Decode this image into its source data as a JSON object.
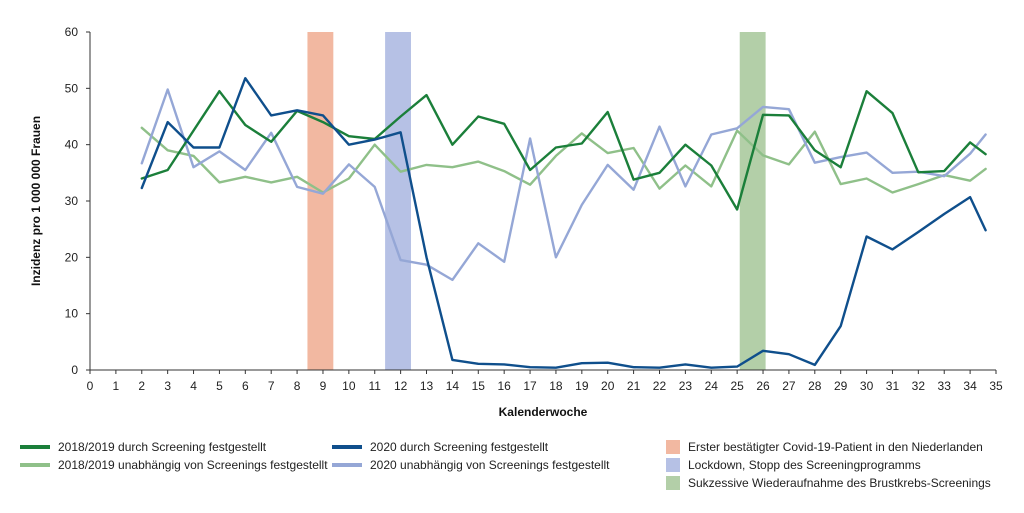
{
  "chart_data": {
    "type": "line",
    "xlabel": "Kalenderwoche",
    "ylabel": "Inzidenz pro 1 000 000 Frauen",
    "xlim": [
      0,
      35
    ],
    "ylim": [
      0,
      60
    ],
    "x_ticks": [
      "0",
      "1",
      "2",
      "3",
      "4",
      "5",
      "6",
      "7",
      "8",
      "9",
      "10",
      "11",
      "12",
      "13",
      "14",
      "15",
      "16",
      "17",
      "18",
      "19",
      "20",
      "21",
      "22",
      "23",
      "24",
      "25",
      "26",
      "27",
      "28",
      "29",
      "30",
      "31",
      "32",
      "33",
      "34",
      "35"
    ],
    "y_ticks": [
      "0",
      "10",
      "20",
      "30",
      "40",
      "50",
      "60"
    ],
    "grid": false,
    "series": [
      {
        "name": "2018/2019 durch Screening festgestellt",
        "color": "#1b7f3a",
        "x": [
          2,
          3,
          4,
          5,
          6,
          7,
          8,
          9,
          10,
          11,
          12,
          13,
          14,
          15,
          16,
          17,
          18,
          19,
          20,
          21,
          22,
          23,
          24,
          25,
          26,
          27,
          28,
          29,
          30,
          31,
          32,
          33,
          34,
          34.6
        ],
        "values": [
          34,
          35.5,
          42.5,
          49.5,
          43.5,
          40.5,
          46,
          44,
          41.5,
          41,
          45,
          48.8,
          40,
          45,
          43.7,
          35.5,
          39.5,
          40.2,
          45.8,
          33.8,
          35,
          40,
          36.3,
          28.5,
          45.3,
          45.2,
          39,
          36,
          49.5,
          45.6,
          35.1,
          35.3,
          40.4,
          38.3
        ]
      },
      {
        "name": "2018/2019 unabhängig von Screenings festgestellt",
        "color": "#8fc089",
        "x": [
          2,
          3,
          4,
          5,
          6,
          7,
          8,
          9,
          10,
          11,
          12,
          13,
          14,
          15,
          16,
          17,
          18,
          19,
          20,
          21,
          22,
          23,
          24,
          25,
          26,
          27,
          28,
          29,
          30,
          31,
          32,
          33,
          34,
          34.6
        ],
        "values": [
          43,
          39,
          38,
          33.3,
          34.3,
          33.3,
          34.3,
          31.5,
          34,
          40,
          35.2,
          36.4,
          36,
          37,
          35.3,
          32.9,
          38,
          42,
          38.5,
          39.4,
          32.2,
          36.3,
          32.6,
          42.5,
          38.1,
          36.5,
          42.3,
          33,
          34,
          31.5,
          33,
          34.6,
          33.6,
          35.7
        ]
      },
      {
        "name": "2020 durch Screening festgestellt",
        "color": "#0f4f8c",
        "x": [
          2,
          3,
          4,
          5,
          6,
          7,
          8,
          9,
          10,
          11,
          12,
          13,
          14,
          15,
          16,
          17,
          18,
          19,
          20,
          21,
          22,
          23,
          24,
          25,
          26,
          27,
          28,
          29,
          30,
          31,
          32,
          33,
          34,
          34.6
        ],
        "values": [
          32.3,
          44,
          39.5,
          39.5,
          51.8,
          45.2,
          46.1,
          45.2,
          40,
          40.9,
          42.2,
          20,
          1.8,
          1.1,
          1,
          0.5,
          0.4,
          1.2,
          1.3,
          0.5,
          0.4,
          1,
          0.4,
          0.6,
          3.4,
          2.8,
          0.9,
          7.8,
          23.7,
          21.4,
          24.5,
          27.7,
          30.7,
          24.8
        ]
      },
      {
        "name": "2020 unabhängig von Screenings festgestellt",
        "color": "#95a7d6",
        "x": [
          2,
          3,
          4,
          5,
          6,
          7,
          8,
          9,
          10,
          11,
          12,
          13,
          14,
          15,
          16,
          17,
          18,
          19,
          20,
          21,
          22,
          23,
          24,
          25,
          26,
          27,
          28,
          29,
          30,
          31,
          32,
          33,
          34,
          34.6
        ],
        "values": [
          36.7,
          49.8,
          36,
          38.8,
          35.5,
          42.1,
          32.5,
          31.3,
          36.5,
          32.5,
          19.5,
          18.7,
          16,
          22.5,
          19.2,
          41.1,
          20,
          29.3,
          36.4,
          32,
          43.2,
          32.6,
          41.8,
          42.9,
          46.7,
          46.3,
          36.8,
          37.8,
          38.6,
          35,
          35.2,
          34.4,
          38.4,
          41.8
        ]
      }
    ],
    "bands": [
      {
        "name": "Erster bestätigter Covid-19-Patient in den Niederlanden",
        "x": [
          8.4,
          9.4
        ],
        "color": "#f2b8a1"
      },
      {
        "name": "Lockdown, Stopp des Screeningprogramms",
        "x": [
          11.4,
          12.4
        ],
        "color": "#b6c1e5"
      },
      {
        "name": "Sukzessive Wiederaufnahme des Brustkrebs-Screenings",
        "x": [
          25.1,
          26.1
        ],
        "color": "#b3cfa8"
      }
    ],
    "legend_position": "bottom"
  },
  "legend": [
    {
      "label": "2018/2019 durch Screening festgestellt",
      "color": "#1b7f3a",
      "kind": "line"
    },
    {
      "label": "2018/2019 unabhängig von Screenings festgestellt",
      "color": "#8fc089",
      "kind": "line"
    },
    {
      "label": "2020 durch Screening festgestellt",
      "color": "#0f4f8c",
      "kind": "line"
    },
    {
      "label": "2020 unabhängig von Screenings festgestellt",
      "color": "#95a7d6",
      "kind": "line"
    },
    {
      "label": "Erster bestätigter Covid-19-Patient in den Niederlanden",
      "color": "#f2b8a1",
      "kind": "box"
    },
    {
      "label": "Lockdown, Stopp des Screeningprogramms",
      "color": "#b6c1e5",
      "kind": "box"
    },
    {
      "label": "Sukzessive Wiederaufnahme des Brustkrebs-Screenings",
      "color": "#b3cfa8",
      "kind": "box"
    }
  ]
}
